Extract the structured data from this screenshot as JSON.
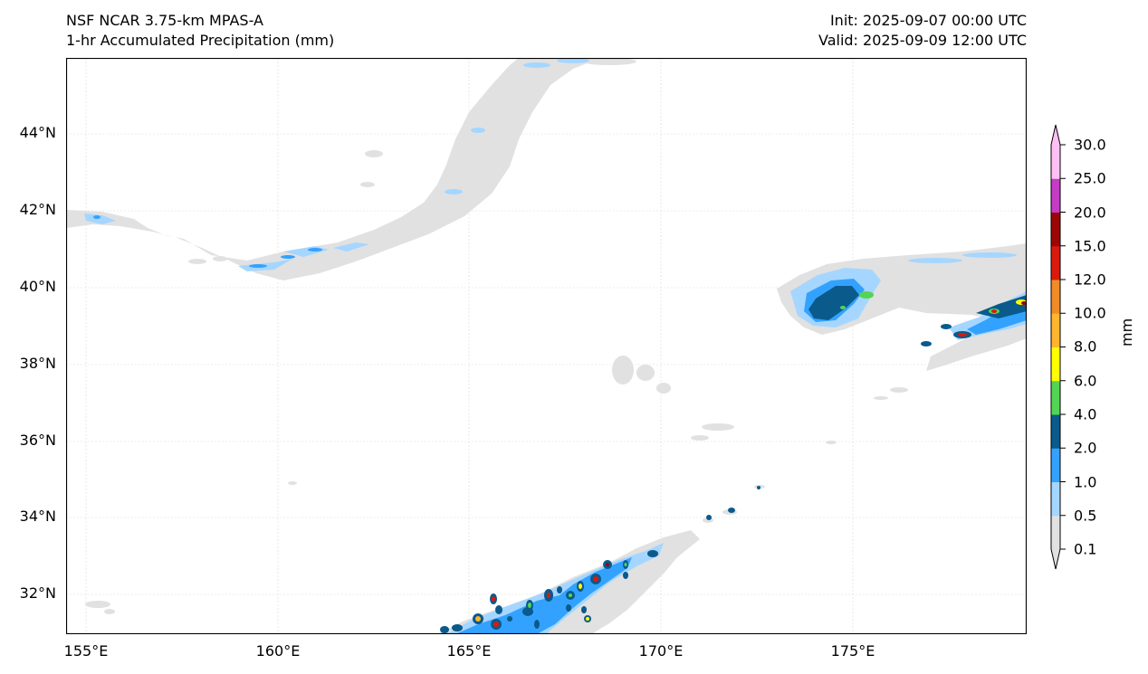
{
  "header": {
    "title_left_1": "NSF NCAR 3.75-km MPAS-A",
    "title_left_2": "1-hr Accumulated Precipitation (mm)",
    "title_right_1": "Init: 2025-09-07 00:00 UTC",
    "title_right_2": "Valid: 2025-09-09 12:00 UTC"
  },
  "map": {
    "lat_labels": [
      "44°N",
      "42°N",
      "40°N",
      "38°N",
      "36°N",
      "34°N",
      "32°N"
    ],
    "lon_labels": [
      "155°E",
      "160°E",
      "165°E",
      "170°E",
      "175°E"
    ],
    "gridlines": true
  },
  "colorbar": {
    "units": "mm",
    "levels": [
      "0.1",
      "0.5",
      "1.0",
      "2.0",
      "4.0",
      "6.0",
      "8.0",
      "10.0",
      "12.0",
      "15.0",
      "20.0",
      "25.0",
      "30.0"
    ],
    "colors": [
      "#e1e1e1",
      "#a5d6ff",
      "#33a2ff",
      "#0a5a8c",
      "#54d454",
      "#ffff00",
      "#ffb52e",
      "#f08c28",
      "#d91a0e",
      "#9c0606",
      "#c33cc3",
      "#ffbff5"
    ]
  }
}
